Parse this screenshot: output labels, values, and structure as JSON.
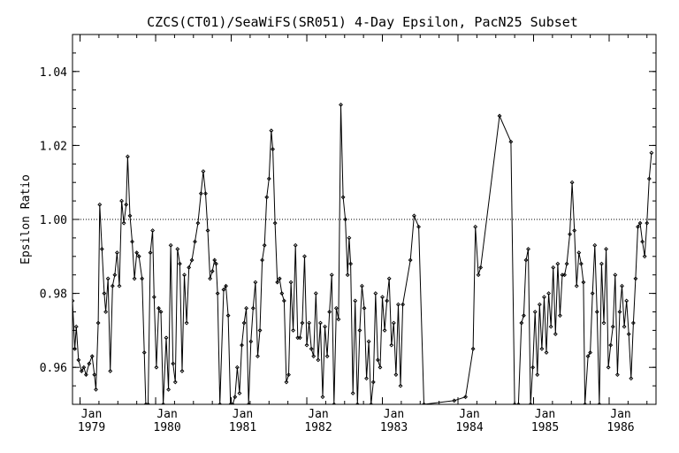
{
  "chart_data": {
    "type": "line",
    "title": "CZCS(CT01)/SeaWiFS(SR051) 4-Day Epsilon, PacN25 Subset",
    "xlabel": "",
    "ylabel": "Epsilon Ratio",
    "xlim": [
      1978.9,
      1986.62
    ],
    "ylim": [
      0.95,
      1.05
    ],
    "y_ticks": [
      0.96,
      0.98,
      1.0,
      1.02,
      1.04
    ],
    "y_tick_labels": [
      "0.96",
      "0.98",
      "1.00",
      "1.02",
      "1.04"
    ],
    "x_ticks": [
      {
        "x": 1979,
        "month": "Jan",
        "year": "1979"
      },
      {
        "x": 1980,
        "month": "Jan",
        "year": "1980"
      },
      {
        "x": 1981,
        "month": "Jan",
        "year": "1981"
      },
      {
        "x": 1982,
        "month": "Jan",
        "year": "1982"
      },
      {
        "x": 1983,
        "month": "Jan",
        "year": "1983"
      },
      {
        "x": 1984,
        "month": "Jan",
        "year": "1984"
      },
      {
        "x": 1985,
        "month": "Jan",
        "year": "1985"
      },
      {
        "x": 1986,
        "month": "Jan",
        "year": "1986"
      }
    ],
    "reference_line": {
      "y": 1.0,
      "style": "dotted"
    },
    "grid": false,
    "legend": "none",
    "colors": {
      "line": "#000000",
      "background": "#ffffff"
    },
    "series": [
      {
        "points": [
          [
            1978.9,
            0.978
          ],
          [
            1978.93,
            0.965
          ],
          [
            1978.95,
            0.971
          ],
          [
            1978.98,
            0.962
          ],
          [
            1979.02,
            0.959
          ],
          [
            1979.05,
            0.96
          ],
          [
            1979.08,
            0.958
          ],
          [
            1979.12,
            0.961
          ],
          [
            1979.16,
            0.963
          ],
          [
            1979.19,
            0.958
          ],
          [
            1979.21,
            0.954
          ],
          [
            1979.24,
            0.972
          ],
          [
            1979.26,
            1.004
          ],
          [
            1979.29,
            0.992
          ],
          [
            1979.32,
            0.98
          ],
          [
            1979.34,
            0.975
          ],
          [
            1979.37,
            0.984
          ],
          [
            1979.4,
            0.959
          ],
          [
            1979.43,
            0.982
          ],
          [
            1979.46,
            0.985
          ],
          [
            1979.49,
            0.991
          ],
          [
            1979.52,
            0.982
          ],
          [
            1979.55,
            1.005
          ],
          [
            1979.58,
            0.999
          ],
          [
            1979.61,
            1.004
          ],
          [
            1979.63,
            1.017
          ],
          [
            1979.66,
            1.001
          ],
          [
            1979.69,
            0.994
          ],
          [
            1979.72,
            0.984
          ],
          [
            1979.75,
            0.991
          ],
          [
            1979.78,
            0.99
          ],
          [
            1979.82,
            0.984
          ],
          [
            1979.85,
            0.964
          ],
          [
            1979.87,
            0.95
          ],
          [
            1979.9,
            0.95
          ],
          [
            1979.93,
            0.991
          ],
          [
            1979.96,
            0.997
          ],
          [
            1979.98,
            0.979
          ],
          [
            1980.01,
            0.96
          ],
          [
            1980.04,
            0.976
          ],
          [
            1980.07,
            0.975
          ],
          [
            1980.1,
            0.95
          ],
          [
            1980.14,
            0.968
          ],
          [
            1980.17,
            0.954
          ],
          [
            1980.2,
            0.993
          ],
          [
            1980.23,
            0.961
          ],
          [
            1980.26,
            0.956
          ],
          [
            1980.29,
            0.992
          ],
          [
            1980.32,
            0.988
          ],
          [
            1980.35,
            0.959
          ],
          [
            1980.38,
            0.985
          ],
          [
            1980.41,
            0.972
          ],
          [
            1980.44,
            0.987
          ],
          [
            1980.48,
            0.989
          ],
          [
            1980.52,
            0.994
          ],
          [
            1980.56,
            0.999
          ],
          [
            1980.6,
            1.007
          ],
          [
            1980.63,
            1.013
          ],
          [
            1980.66,
            1.007
          ],
          [
            1980.69,
            0.997
          ],
          [
            1980.72,
            0.984
          ],
          [
            1980.75,
            0.986
          ],
          [
            1980.78,
            0.989
          ],
          [
            1980.8,
            0.988
          ],
          [
            1980.82,
            0.98
          ],
          [
            1980.85,
            0.95
          ],
          [
            1980.9,
            0.981
          ],
          [
            1980.93,
            0.982
          ],
          [
            1980.96,
            0.974
          ],
          [
            1980.99,
            0.95
          ],
          [
            1981.02,
            0.95
          ],
          [
            1981.05,
            0.952
          ],
          [
            1981.08,
            0.96
          ],
          [
            1981.11,
            0.953
          ],
          [
            1981.14,
            0.966
          ],
          [
            1981.17,
            0.972
          ],
          [
            1981.2,
            0.976
          ],
          [
            1981.23,
            0.95
          ],
          [
            1981.26,
            0.967
          ],
          [
            1981.29,
            0.976
          ],
          [
            1981.32,
            0.983
          ],
          [
            1981.35,
            0.963
          ],
          [
            1981.38,
            0.97
          ],
          [
            1981.41,
            0.989
          ],
          [
            1981.44,
            0.993
          ],
          [
            1981.47,
            1.006
          ],
          [
            1981.5,
            1.011
          ],
          [
            1981.53,
            1.024
          ],
          [
            1981.55,
            1.019
          ],
          [
            1981.58,
            0.999
          ],
          [
            1981.61,
            0.983
          ],
          [
            1981.64,
            0.984
          ],
          [
            1981.67,
            0.98
          ],
          [
            1981.7,
            0.978
          ],
          [
            1981.73,
            0.956
          ],
          [
            1981.76,
            0.958
          ],
          [
            1981.79,
            0.983
          ],
          [
            1981.82,
            0.97
          ],
          [
            1981.85,
            0.993
          ],
          [
            1981.88,
            0.968
          ],
          [
            1981.91,
            0.968
          ],
          [
            1981.94,
            0.972
          ],
          [
            1981.97,
            0.99
          ],
          [
            1982.0,
            0.966
          ],
          [
            1982.03,
            0.972
          ],
          [
            1982.06,
            0.965
          ],
          [
            1982.09,
            0.963
          ],
          [
            1982.12,
            0.98
          ],
          [
            1982.15,
            0.962
          ],
          [
            1982.18,
            0.972
          ],
          [
            1982.21,
            0.952
          ],
          [
            1982.24,
            0.971
          ],
          [
            1982.27,
            0.963
          ],
          [
            1982.3,
            0.975
          ],
          [
            1982.33,
            0.985
          ],
          [
            1982.36,
            0.95
          ],
          [
            1982.39,
            0.976
          ],
          [
            1982.42,
            0.973
          ],
          [
            1982.45,
            1.031
          ],
          [
            1982.48,
            1.006
          ],
          [
            1982.51,
            1.0
          ],
          [
            1982.54,
            0.985
          ],
          [
            1982.56,
            0.995
          ],
          [
            1982.58,
            0.988
          ],
          [
            1982.61,
            0.953
          ],
          [
            1982.64,
            0.978
          ],
          [
            1982.67,
            0.95
          ],
          [
            1982.7,
            0.97
          ],
          [
            1982.73,
            0.982
          ],
          [
            1982.76,
            0.976
          ],
          [
            1982.79,
            0.957
          ],
          [
            1982.82,
            0.967
          ],
          [
            1982.85,
            0.95
          ],
          [
            1982.88,
            0.956
          ],
          [
            1982.91,
            0.98
          ],
          [
            1982.94,
            0.962
          ],
          [
            1982.97,
            0.96
          ],
          [
            1983.0,
            0.979
          ],
          [
            1983.03,
            0.97
          ],
          [
            1983.06,
            0.978
          ],
          [
            1983.09,
            0.984
          ],
          [
            1983.12,
            0.966
          ],
          [
            1983.15,
            0.972
          ],
          [
            1983.18,
            0.958
          ],
          [
            1983.21,
            0.977
          ],
          [
            1983.24,
            0.955
          ],
          [
            1983.27,
            0.977
          ],
          [
            1983.37,
            0.989
          ],
          [
            1983.42,
            1.001
          ],
          [
            1983.48,
            0.998
          ],
          [
            1983.55,
            0.95
          ],
          [
            1983.95,
            0.951
          ],
          [
            1984.1,
            0.952
          ],
          [
            1984.2,
            0.965
          ],
          [
            1984.23,
            0.998
          ],
          [
            1984.27,
            0.985
          ],
          [
            1984.3,
            0.987
          ],
          [
            1984.55,
            1.028
          ],
          [
            1984.7,
            1.021
          ],
          [
            1984.75,
            0.95
          ],
          [
            1984.8,
            0.95
          ],
          [
            1984.84,
            0.972
          ],
          [
            1984.87,
            0.974
          ],
          [
            1984.9,
            0.989
          ],
          [
            1984.93,
            0.992
          ],
          [
            1984.96,
            0.95
          ],
          [
            1984.99,
            0.96
          ],
          [
            1985.02,
            0.975
          ],
          [
            1985.05,
            0.958
          ],
          [
            1985.08,
            0.977
          ],
          [
            1985.11,
            0.965
          ],
          [
            1985.14,
            0.979
          ],
          [
            1985.17,
            0.964
          ],
          [
            1985.2,
            0.98
          ],
          [
            1985.23,
            0.971
          ],
          [
            1985.26,
            0.987
          ],
          [
            1985.29,
            0.969
          ],
          [
            1985.32,
            0.988
          ],
          [
            1985.35,
            0.974
          ],
          [
            1985.38,
            0.985
          ],
          [
            1985.41,
            0.985
          ],
          [
            1985.44,
            0.988
          ],
          [
            1985.48,
            0.996
          ],
          [
            1985.51,
            1.01
          ],
          [
            1985.54,
            0.997
          ],
          [
            1985.57,
            0.982
          ],
          [
            1985.6,
            0.991
          ],
          [
            1985.63,
            0.988
          ],
          [
            1985.66,
            0.983
          ],
          [
            1985.68,
            0.95
          ],
          [
            1985.72,
            0.963
          ],
          [
            1985.75,
            0.964
          ],
          [
            1985.78,
            0.98
          ],
          [
            1985.81,
            0.993
          ],
          [
            1985.84,
            0.975
          ],
          [
            1985.87,
            0.95
          ],
          [
            1985.9,
            0.988
          ],
          [
            1985.93,
            0.972
          ],
          [
            1985.96,
            0.992
          ],
          [
            1985.99,
            0.96
          ],
          [
            1986.02,
            0.966
          ],
          [
            1986.05,
            0.971
          ],
          [
            1986.08,
            0.985
          ],
          [
            1986.11,
            0.958
          ],
          [
            1986.14,
            0.975
          ],
          [
            1986.17,
            0.982
          ],
          [
            1986.2,
            0.971
          ],
          [
            1986.23,
            0.978
          ],
          [
            1986.26,
            0.969
          ],
          [
            1986.29,
            0.957
          ],
          [
            1986.32,
            0.972
          ],
          [
            1986.35,
            0.984
          ],
          [
            1986.38,
            0.998
          ],
          [
            1986.41,
            0.999
          ],
          [
            1986.44,
            0.994
          ],
          [
            1986.47,
            0.99
          ],
          [
            1986.5,
            0.999
          ],
          [
            1986.53,
            1.011
          ],
          [
            1986.56,
            1.018
          ]
        ]
      }
    ]
  }
}
